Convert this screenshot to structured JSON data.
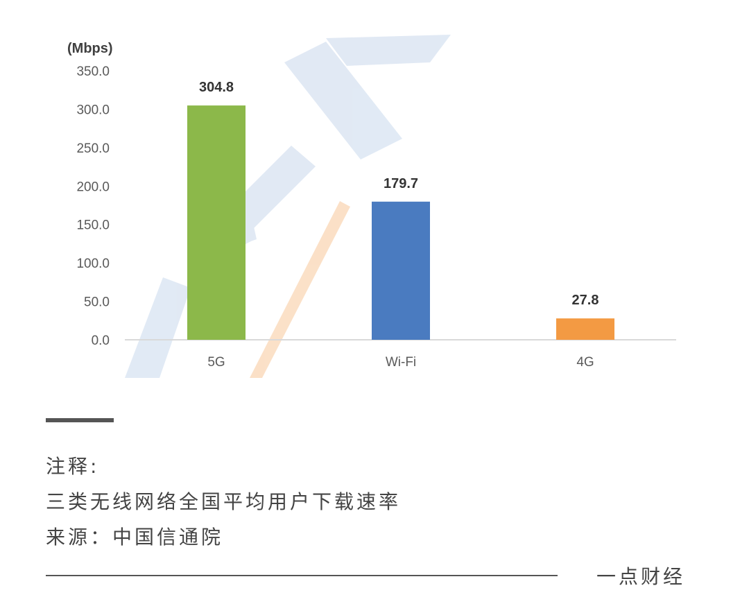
{
  "chart_data": {
    "type": "bar",
    "unit_label": "(Mbps)",
    "categories": [
      "5G",
      "Wi-Fi",
      "4G"
    ],
    "values": [
      304.8,
      179.7,
      27.8
    ],
    "value_labels": [
      "304.8",
      "179.7",
      "27.8"
    ],
    "bar_colors": [
      "#8cb84a",
      "#4a7bc0",
      "#f39a43"
    ],
    "ylim": [
      0,
      350
    ],
    "y_ticks": [
      "0.0",
      "50.0",
      "100.0",
      "150.0",
      "200.0",
      "250.0",
      "300.0",
      "350.0"
    ],
    "grid": false,
    "legend": "none"
  },
  "notes": {
    "heading": "注释:",
    "description": "三类无线网络全国平均用户下载速率",
    "source": "来源：中国信通院"
  },
  "footer": {
    "brand": "一点财经"
  },
  "colors": {
    "text": "#444444",
    "watermark_blue": "#c9d8ec",
    "watermark_orange": "#f8c89a"
  }
}
